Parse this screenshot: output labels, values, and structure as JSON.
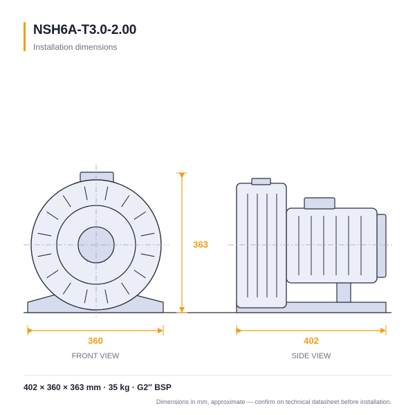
{
  "header": {
    "title": "NSH6A-T3.0-2.00",
    "subtitle": "Installation dimensions"
  },
  "views": {
    "front": {
      "label": "FRONT VIEW",
      "width_value": "360"
    },
    "side": {
      "label": "SIDE VIEW",
      "width_value": "402"
    },
    "height_value": "363"
  },
  "footer": {
    "specs": "402 × 360 × 363 mm  ·  35 kg  ·  G2″ BSP",
    "note": "Dimensions in mm, approximate — confirm on technical datasheet before installation."
  },
  "colors": {
    "accent": "#f39c12",
    "outline": "#2a2f3d",
    "fill": "#eceef7",
    "fill_dark": "#d7dbee"
  }
}
